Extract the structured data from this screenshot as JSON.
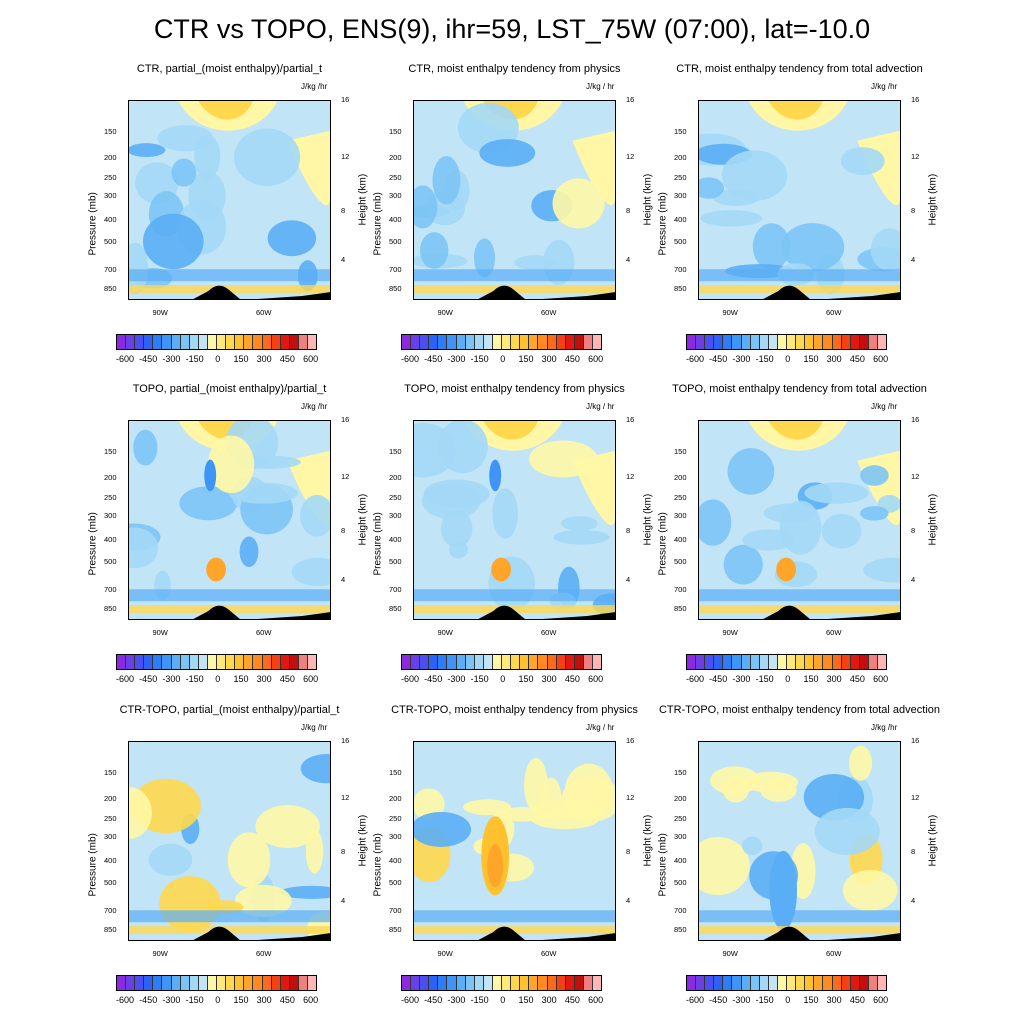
{
  "title": "CTR vs TOPO, ENS(9), ihr=59, LST_75W (07:00), lat=-10.0",
  "axis": {
    "ylabel_left": "Pressure (mb)",
    "ylabel_right": "Height (km)",
    "pressure_ticks": [
      "150",
      "200",
      "250",
      "300",
      "400",
      "500",
      "700",
      "850"
    ],
    "height_ticks": [
      "4",
      "8",
      "12",
      "16"
    ],
    "x_ticks": [
      "90W",
      "60W"
    ]
  },
  "colorbar": {
    "labels": [
      "-600",
      "-450",
      "-300",
      "-150",
      "0",
      "150",
      "300",
      "450",
      "600"
    ],
    "colors": [
      "#8a2be2",
      "#6a3fe6",
      "#4a4ff0",
      "#2c62f5",
      "#2e7cf6",
      "#3f95f5",
      "#5aaef5",
      "#7cc4f5",
      "#a3d8f6",
      "#c1e4f7",
      "#fff7a6",
      "#ffe97a",
      "#ffd84d",
      "#ffc12e",
      "#ffa62a",
      "#ff8a20",
      "#ff6a1a",
      "#f54015",
      "#e0180f",
      "#c20e0e",
      "#f08080",
      "#ffb6b6"
    ]
  },
  "panels": [
    {
      "title": "CTR, partial_(moist enthalpy)/partial_t",
      "units": "J/kg /hr"
    },
    {
      "title": "CTR, moist enthalpy tendency from physics",
      "units": "J/kg / hr"
    },
    {
      "title": "CTR, moist enthalpy tendency from total advection",
      "units": "J/kg /hr"
    },
    {
      "title": "TOPO, partial_(moist enthalpy)/partial_t",
      "units": "J/kg /hr"
    },
    {
      "title": "TOPO, moist enthalpy tendency from physics",
      "units": "J/kg / hr"
    },
    {
      "title": "TOPO, moist enthalpy tendency from total advection",
      "units": "J/kg /hr"
    },
    {
      "title": "CTR-TOPO, partial_(moist enthalpy)/partial_t",
      "units": "J/kg /hr"
    },
    {
      "title": "CTR-TOPO, moist enthalpy tendency from physics",
      "units": "J/kg / hr"
    },
    {
      "title": "CTR-TOPO, moist enthalpy tendency from total advection",
      "units": "J/kg /hr"
    }
  ],
  "chart_data": {
    "type": "heatmap",
    "title": "CTR vs TOPO, ENS(9), ihr=59, LST_75W (07:00), lat=-10.0",
    "xlabel": "",
    "ylabel": "Pressure (mb)",
    "ylabel_right": "Height (km)",
    "y_ticks": [
      150,
      200,
      250,
      300,
      400,
      500,
      700,
      850
    ],
    "y_right_ticks": [
      4,
      8,
      12,
      16
    ],
    "x_ticks": [
      "90W",
      "60W"
    ],
    "colorbar_levels": [
      -600,
      -450,
      -300,
      -150,
      0,
      150,
      300,
      450,
      600
    ],
    "panel_count": 9,
    "grid": false
  }
}
